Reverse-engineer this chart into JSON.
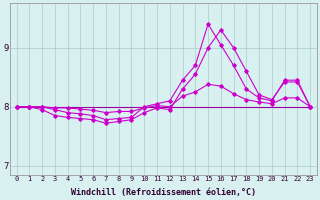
{
  "xlabel": "Windchill (Refroidissement éolien,°C)",
  "bg_color": "#d8f0f0",
  "line_color": "#cc00cc",
  "line_color2": "#990099",
  "grid_color": "#aacccc",
  "grid_color2": "#bbdddd",
  "xlim": [
    -0.5,
    23.5
  ],
  "ylim": [
    6.85,
    9.75
  ],
  "yticks": [
    7,
    8,
    9
  ],
  "xticks": [
    0,
    1,
    2,
    3,
    4,
    5,
    6,
    7,
    8,
    9,
    10,
    11,
    12,
    13,
    14,
    15,
    16,
    17,
    18,
    19,
    20,
    21,
    22,
    23
  ],
  "line_spike": [
    8.0,
    8.0,
    8.0,
    7.95,
    7.9,
    7.88,
    7.85,
    7.78,
    7.8,
    7.82,
    8.0,
    8.05,
    8.1,
    8.45,
    8.7,
    9.4,
    9.05,
    8.7,
    8.3,
    8.15,
    8.1,
    8.45,
    8.45,
    8.0
  ],
  "line_high": [
    8.0,
    8.0,
    7.95,
    7.85,
    7.82,
    7.8,
    7.78,
    7.72,
    7.75,
    7.78,
    7.9,
    7.98,
    7.95,
    8.3,
    8.55,
    9.0,
    9.3,
    9.0,
    8.6,
    8.2,
    8.12,
    8.42,
    8.42,
    8.0
  ],
  "line_mid": [
    8.0,
    8.0,
    8.0,
    7.98,
    7.98,
    7.96,
    7.94,
    7.9,
    7.92,
    7.92,
    7.98,
    8.02,
    8.0,
    8.18,
    8.25,
    8.38,
    8.35,
    8.22,
    8.12,
    8.08,
    8.05,
    8.15,
    8.15,
    8.0
  ],
  "line_flat": [
    8.0,
    8.0,
    8.0,
    8.0,
    8.0,
    8.0,
    8.0,
    8.0,
    8.0,
    8.0,
    8.0,
    8.0,
    8.0,
    8.0,
    8.0,
    8.0,
    8.0,
    8.0,
    8.0,
    8.0,
    8.0,
    8.0,
    8.0,
    8.0
  ],
  "xlabel_fontsize": 6.0,
  "xtick_fontsize": 5.0,
  "ytick_fontsize": 6.5
}
